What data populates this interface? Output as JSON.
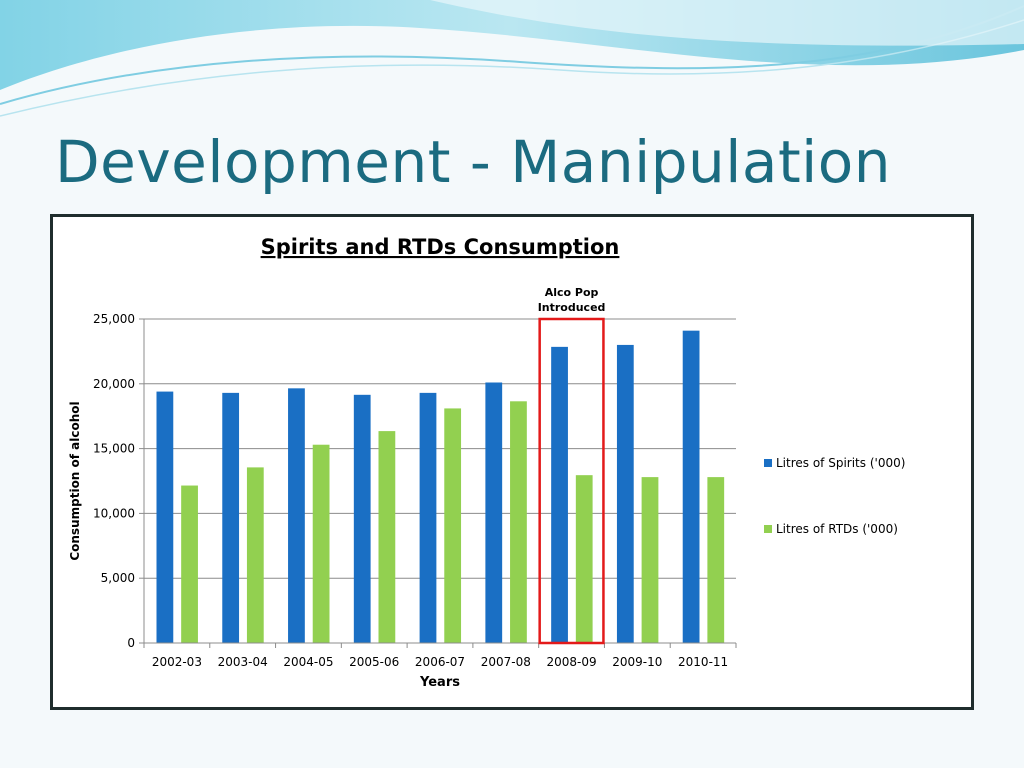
{
  "slide": {
    "title": "Development - Manipulation"
  },
  "chart_data": {
    "type": "bar",
    "title": "Spirits and RTDs Consumption",
    "xlabel": "Years",
    "ylabel": "Consumption of alcohol",
    "ylim": [
      0,
      25000
    ],
    "yticks": [
      "0",
      "5,000",
      "10,000",
      "15,000",
      "20,000",
      "25,000"
    ],
    "grid": true,
    "legend_position": "right",
    "categories": [
      "2002-03",
      "2003-04",
      "2004-05",
      "2005-06",
      "2006-07",
      "2007-08",
      "2008-09",
      "2009-10",
      "2010-11"
    ],
    "series": [
      {
        "name": "Litres of Spirits ('000)",
        "color": "#1a6fc4",
        "values": [
          19400,
          19300,
          19650,
          19150,
          19300,
          20100,
          22850,
          23000,
          24100
        ]
      },
      {
        "name": "Litres of RTDs ('000)",
        "color": "#92d050",
        "values": [
          12150,
          13550,
          15300,
          16350,
          18100,
          18650,
          12950,
          12800,
          12800
        ]
      }
    ],
    "annotation": {
      "text_line1": "Alco Pop",
      "text_line2": "Introduced",
      "category": "2008-09",
      "color": "#e31a1a"
    }
  }
}
